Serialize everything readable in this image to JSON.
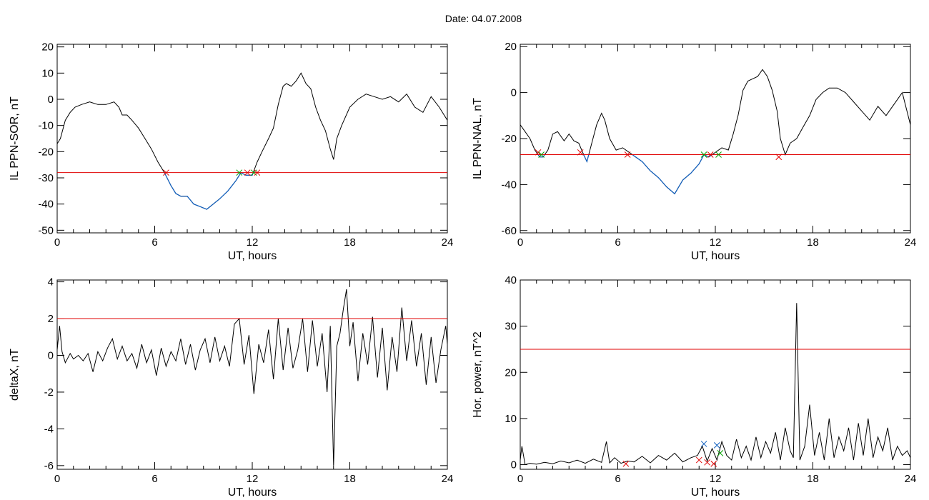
{
  "figure": {
    "title": "Date:  04.07.2008"
  },
  "chart_data": [
    {
      "id": "ppn-sor",
      "type": "line",
      "title": "",
      "xlabel": "UT, hours",
      "ylabel": "IL PPN-SOR, nT",
      "xlim": [
        0,
        24
      ],
      "ylim": [
        -51,
        21
      ],
      "xticks": [
        0,
        6,
        12,
        18,
        24
      ],
      "yticks": [
        20,
        10,
        0,
        -10,
        -20,
        -30,
        -40,
        -50
      ],
      "colors": {
        "line": "#000000",
        "below": "#1060c0",
        "threshold": "#e00000"
      },
      "threshold": -28,
      "series": [
        {
          "x": [
            0,
            0.2,
            0.5,
            0.8,
            1.1,
            1.5,
            2.0,
            2.5,
            3.0,
            3.5,
            3.8,
            4.0,
            4.3,
            4.6,
            5.0,
            5.4,
            5.8,
            6.2,
            6.6,
            7.0,
            7.3,
            7.6,
            8.0,
            8.4,
            8.8,
            9.2,
            9.6,
            10.0,
            10.5,
            11.0,
            11.3,
            11.6,
            12.0,
            12.3,
            12.6,
            13.0,
            13.3,
            13.6,
            13.9,
            14.1,
            14.4,
            14.7,
            15.0,
            15.3,
            15.6,
            15.9,
            16.2,
            16.5,
            16.8,
            17.0,
            17.2,
            17.5,
            18.0,
            18.5,
            19.0,
            19.5,
            20.0,
            20.5,
            21.0,
            21.5,
            22.0,
            22.5,
            23.0,
            23.5,
            24.0
          ],
          "y": [
            -17,
            -15,
            -8,
            -5,
            -3,
            -2,
            -1,
            -2,
            -2,
            -1,
            -3,
            -6,
            -6,
            -8,
            -11,
            -15,
            -19,
            -24,
            -28,
            -33,
            -36,
            -37,
            -37,
            -40,
            -41,
            -42,
            -40,
            -38,
            -35,
            -31,
            -28,
            -29,
            -29,
            -24,
            -20,
            -15,
            -11,
            -2,
            5,
            6,
            5,
            7,
            10,
            6,
            4,
            -3,
            -8,
            -12,
            -19,
            -23,
            -15,
            -10,
            -3,
            0,
            2,
            1,
            0,
            1,
            -1,
            2,
            -3,
            -5,
            1,
            -3,
            -8
          ]
        }
      ],
      "markers": [
        {
          "x": 6.7,
          "y": -28,
          "color": "red"
        },
        {
          "x": 11.2,
          "y": -28,
          "color": "green"
        },
        {
          "x": 11.7,
          "y": -28,
          "color": "red"
        },
        {
          "x": 12.1,
          "y": -28,
          "color": "green"
        },
        {
          "x": 12.3,
          "y": -28,
          "color": "red"
        }
      ]
    },
    {
      "id": "ppn-nal",
      "type": "line",
      "title": "",
      "xlabel": "UT, hours",
      "ylabel": "IL PPN-NAL, nT",
      "xlim": [
        0,
        24
      ],
      "ylim": [
        -61,
        21
      ],
      "xticks": [
        0,
        6,
        12,
        18,
        24
      ],
      "yticks": [
        20,
        0,
        -20,
        -40,
        -60
      ],
      "colors": {
        "line": "#000000",
        "below": "#1060c0",
        "threshold": "#e00000"
      },
      "threshold": -27,
      "series": [
        {
          "x": [
            0,
            0.3,
            0.6,
            0.9,
            1.2,
            1.4,
            1.7,
            2.0,
            2.3,
            2.7,
            3.0,
            3.3,
            3.6,
            3.9,
            4.1,
            4.4,
            4.7,
            5.0,
            5.2,
            5.5,
            5.9,
            6.3,
            6.7,
            7.1,
            7.5,
            8.0,
            8.5,
            9.0,
            9.5,
            10.0,
            10.5,
            11.0,
            11.3,
            11.6,
            12.0,
            12.4,
            12.8,
            13.1,
            13.4,
            13.7,
            14.0,
            14.3,
            14.6,
            14.9,
            15.2,
            15.5,
            15.8,
            16.0,
            16.3,
            16.6,
            17.0,
            17.4,
            17.8,
            18.2,
            18.6,
            19.0,
            19.5,
            20.0,
            20.5,
            21.0,
            21.5,
            22.0,
            22.5,
            23.0,
            23.5,
            24.0
          ],
          "y": [
            -14,
            -17,
            -20,
            -25,
            -28,
            -28,
            -25,
            -18,
            -17,
            -21,
            -18,
            -21,
            -22,
            -27,
            -30,
            -22,
            -14,
            -9,
            -12,
            -20,
            -25,
            -24,
            -26,
            -28,
            -30,
            -34,
            -37,
            -41,
            -44,
            -38,
            -35,
            -31,
            -27,
            -28,
            -26,
            -24,
            -25,
            -18,
            -10,
            1,
            5,
            6,
            7,
            10,
            7,
            1,
            -8,
            -20,
            -27,
            -22,
            -20,
            -15,
            -10,
            -3,
            0,
            2,
            2,
            0,
            -4,
            -8,
            -12,
            -6,
            -10,
            -5,
            0,
            -14
          ]
        }
      ],
      "markers": [
        {
          "x": 1.1,
          "y": -26,
          "color": "red"
        },
        {
          "x": 1.3,
          "y": -27,
          "color": "green"
        },
        {
          "x": 3.7,
          "y": -26,
          "color": "red"
        },
        {
          "x": 6.6,
          "y": -27,
          "color": "red"
        },
        {
          "x": 11.3,
          "y": -27,
          "color": "green"
        },
        {
          "x": 11.7,
          "y": -27,
          "color": "red"
        },
        {
          "x": 12.2,
          "y": -27,
          "color": "green"
        },
        {
          "x": 15.9,
          "y": -28,
          "color": "red"
        }
      ]
    },
    {
      "id": "deltax",
      "type": "line",
      "title": "",
      "xlabel": "UT, hours",
      "ylabel": "deltaX, nT",
      "xlim": [
        0,
        24
      ],
      "ylim": [
        -6.2,
        4.1
      ],
      "xticks": [
        0,
        6,
        12,
        18,
        24
      ],
      "yticks": [
        4,
        2,
        0,
        -2,
        -4,
        -6
      ],
      "colors": {
        "line": "#000000",
        "threshold": "#e00000"
      },
      "threshold": 2,
      "series": [
        {
          "x": [
            0,
            0.15,
            0.3,
            0.5,
            0.8,
            1.0,
            1.3,
            1.6,
            1.9,
            2.2,
            2.5,
            2.8,
            3.1,
            3.4,
            3.7,
            4.0,
            4.3,
            4.6,
            4.9,
            5.2,
            5.5,
            5.8,
            6.1,
            6.4,
            6.7,
            7.0,
            7.3,
            7.6,
            7.9,
            8.2,
            8.5,
            8.8,
            9.1,
            9.4,
            9.7,
            10.0,
            10.3,
            10.6,
            10.9,
            11.2,
            11.5,
            11.8,
            12.1,
            12.4,
            12.7,
            13.0,
            13.3,
            13.6,
            13.9,
            14.2,
            14.5,
            14.8,
            15.1,
            15.4,
            15.7,
            16.0,
            16.3,
            16.6,
            16.8,
            17.0,
            17.2,
            17.4,
            17.6,
            17.8,
            18.0,
            18.2,
            18.5,
            18.8,
            19.1,
            19.4,
            19.7,
            20.0,
            20.3,
            20.6,
            20.9,
            21.2,
            21.5,
            21.8,
            22.1,
            22.4,
            22.7,
            23.0,
            23.3,
            23.6,
            23.9,
            24.0
          ],
          "y": [
            0.3,
            1.6,
            0.2,
            -0.4,
            0.1,
            -0.2,
            0.0,
            -0.3,
            0.1,
            -0.9,
            0.2,
            -0.3,
            0.4,
            0.9,
            -0.2,
            0.5,
            -0.3,
            0.1,
            -0.7,
            0.6,
            -0.4,
            0.3,
            -1.1,
            0.4,
            -0.6,
            0.2,
            -0.3,
            0.9,
            -0.5,
            0.6,
            -0.8,
            0.3,
            0.9,
            -0.4,
            1.0,
            -0.3,
            0.5,
            -0.6,
            1.7,
            2.0,
            -0.5,
            1.1,
            -2.1,
            0.6,
            -0.4,
            1.4,
            -1.3,
            2.0,
            -0.8,
            1.5,
            -0.7,
            0.3,
            2.0,
            -0.9,
            1.9,
            -0.6,
            1.2,
            -2.0,
            1.6,
            -6.0,
            0.5,
            1.2,
            2.5,
            3.6,
            0.5,
            1.8,
            -1.4,
            1.2,
            -0.5,
            2.1,
            -1.2,
            1.5,
            -1.9,
            1.0,
            -0.9,
            2.6,
            -0.3,
            1.9,
            -0.6,
            1.2,
            -1.6,
            1.0,
            -1.5,
            0.3,
            1.6,
            0.6
          ]
        }
      ]
    },
    {
      "id": "hor-power",
      "type": "line",
      "title": "",
      "xlabel": "UT, hours",
      "ylabel": "Hor. power, nT^2",
      "xlim": [
        0,
        24
      ],
      "ylim": [
        -1,
        40
      ],
      "xticks": [
        0,
        6,
        12,
        18,
        24
      ],
      "yticks": [
        40,
        30,
        20,
        10,
        0
      ],
      "colors": {
        "line": "#000000",
        "threshold": "#e00000"
      },
      "threshold": 25,
      "series": [
        {
          "x": [
            0,
            0.1,
            0.3,
            0.6,
            1.0,
            1.5,
            2.0,
            2.5,
            3.0,
            3.5,
            4.0,
            4.5,
            5.0,
            5.3,
            5.5,
            5.8,
            6.2,
            6.6,
            7.0,
            7.5,
            8.0,
            8.5,
            9.0,
            9.5,
            10.0,
            10.5,
            10.9,
            11.2,
            11.5,
            11.8,
            12.1,
            12.4,
            12.7,
            13.0,
            13.3,
            13.6,
            13.9,
            14.2,
            14.5,
            14.8,
            15.1,
            15.4,
            15.7,
            16.0,
            16.3,
            16.6,
            16.8,
            17.0,
            17.2,
            17.5,
            17.8,
            18.1,
            18.4,
            18.7,
            19.0,
            19.3,
            19.6,
            19.9,
            20.2,
            20.5,
            20.8,
            21.1,
            21.4,
            21.7,
            22.0,
            22.3,
            22.6,
            22.9,
            23.2,
            23.5,
            23.8,
            24.0
          ],
          "y": [
            1,
            4,
            0,
            0.3,
            0.1,
            0.5,
            0.2,
            0.8,
            0.4,
            1.0,
            0.3,
            1.2,
            0.5,
            5.0,
            0.4,
            1.5,
            0.3,
            0.8,
            0.6,
            1.8,
            0.4,
            2.0,
            1.0,
            2.5,
            0.6,
            1.5,
            2.0,
            4.0,
            0.8,
            3.5,
            1.0,
            5.0,
            2.0,
            1.0,
            5.5,
            1.5,
            4.0,
            1.0,
            6.0,
            1.5,
            5.0,
            2.5,
            7.0,
            1.0,
            8.0,
            3.0,
            1.5,
            35.0,
            1.0,
            4.0,
            13.0,
            2.0,
            7.0,
            1.0,
            10.0,
            1.5,
            6.0,
            3.0,
            8.0,
            1.0,
            9.0,
            2.0,
            10.0,
            1.5,
            6.0,
            3.0,
            8.0,
            1.0,
            4.0,
            2.0,
            3.0,
            1.5
          ]
        }
      ],
      "markers": [
        {
          "x": 6.5,
          "y": 0.2,
          "color": "red"
        },
        {
          "x": 11.0,
          "y": 1.0,
          "color": "red"
        },
        {
          "x": 11.3,
          "y": 4.5,
          "color": "blue"
        },
        {
          "x": 11.5,
          "y": 0.5,
          "color": "red"
        },
        {
          "x": 11.9,
          "y": 0.2,
          "color": "red"
        },
        {
          "x": 12.1,
          "y": 4.2,
          "color": "blue"
        },
        {
          "x": 12.3,
          "y": 2.5,
          "color": "green"
        }
      ]
    }
  ]
}
